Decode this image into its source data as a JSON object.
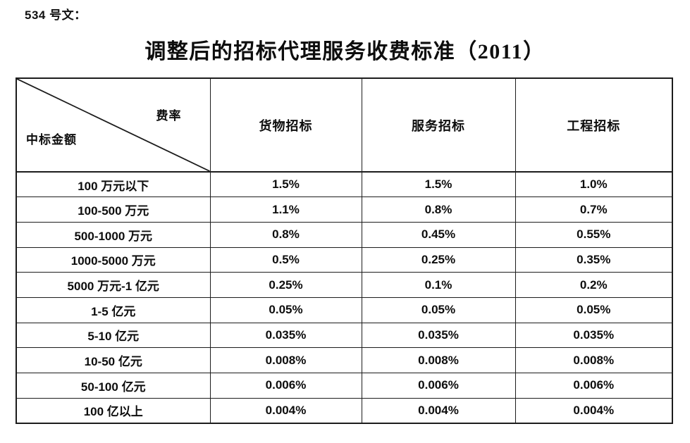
{
  "doc": {
    "ref_label": "534 号文：",
    "title": "调整后的招标代理服务收费标准（2011）"
  },
  "table": {
    "corner": {
      "top_right": "费率",
      "bottom_left": "中标金额"
    },
    "columns": [
      "货物招标",
      "服务招标",
      "工程招标"
    ],
    "rows": [
      {
        "label": "100 万元以下",
        "values": [
          "1.5%",
          "1.5%",
          "1.0%"
        ]
      },
      {
        "label": "100-500 万元",
        "values": [
          "1.1%",
          "0.8%",
          "0.7%"
        ]
      },
      {
        "label": "500-1000 万元",
        "values": [
          "0.8%",
          "0.45%",
          "0.55%"
        ]
      },
      {
        "label": "1000-5000 万元",
        "values": [
          "0.5%",
          "0.25%",
          "0.35%"
        ]
      },
      {
        "label": "5000 万元-1 亿元",
        "values": [
          "0.25%",
          "0.1%",
          "0.2%"
        ]
      },
      {
        "label": "1-5 亿元",
        "values": [
          "0.05%",
          "0.05%",
          "0.05%"
        ]
      },
      {
        "label": "5-10 亿元",
        "values": [
          "0.035%",
          "0.035%",
          "0.035%"
        ]
      },
      {
        "label": "10-50 亿元",
        "values": [
          "0.008%",
          "0.008%",
          "0.008%"
        ]
      },
      {
        "label": "50-100 亿元",
        "values": [
          "0.006%",
          "0.006%",
          "0.006%"
        ]
      },
      {
        "label": "100 亿以上",
        "values": [
          "0.004%",
          "0.004%",
          "0.004%"
        ]
      }
    ],
    "line_color": "#1c1c1c"
  }
}
